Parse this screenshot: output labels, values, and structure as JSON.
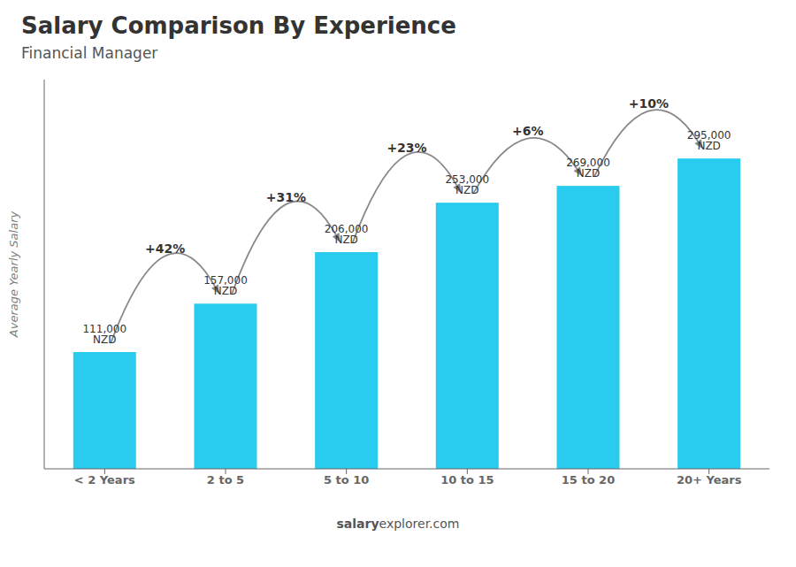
{
  "chart_data": {
    "type": "bar",
    "title": "Salary Comparison By Experience",
    "subtitle": "Financial Manager",
    "categories": [
      "< 2 Years",
      "2 to 5",
      "5 to 10",
      "10 to 15",
      "15 to 20",
      "20+ Years"
    ],
    "values": [
      111000,
      157000,
      206000,
      253000,
      269000,
      295000
    ],
    "value_labels": [
      "111,000 NZD",
      "157,000 NZD",
      "206,000 NZD",
      "253,000 NZD",
      "269,000 NZD",
      "295,000 NZD"
    ],
    "data_labels": true,
    "pct_changes": [
      null,
      "+42%",
      "+31%",
      "+23%",
      "+6%",
      "+10%"
    ],
    "ylabel": "Average Yearly Salary",
    "ylim": [
      0,
      370000
    ],
    "color": "#29ccee",
    "grid": false,
    "tick_labels": "x",
    "footer": [
      "salary",
      "explorer.com"
    ]
  }
}
